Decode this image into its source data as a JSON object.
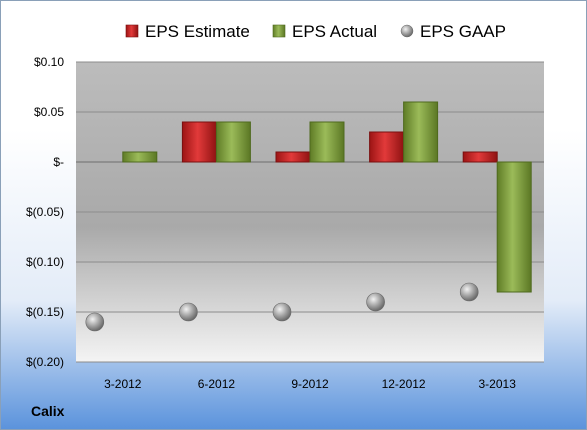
{
  "company": "Calix",
  "chart_data": {
    "type": "bar",
    "categories": [
      "3-2012",
      "6-2012",
      "9-2012",
      "12-2012",
      "3-2013"
    ],
    "series": [
      {
        "name": "EPS Estimate",
        "values": [
          null,
          0.04,
          0.01,
          0.03,
          0.01
        ],
        "color": "#d12a2a",
        "marker": "bar"
      },
      {
        "name": "EPS Actual",
        "values": [
          0.01,
          0.04,
          0.04,
          0.06,
          -0.13
        ],
        "color": "#8fae4a",
        "marker": "bar"
      },
      {
        "name": "EPS GAAP",
        "values": [
          -0.16,
          -0.15,
          -0.15,
          -0.14,
          -0.13
        ],
        "color": "#a6a6a6",
        "marker": "sphere"
      }
    ],
    "ylim": [
      -0.2,
      0.1
    ],
    "yticks": [
      {
        "value": 0.1,
        "label": "$0.10"
      },
      {
        "value": 0.05,
        "label": "$0.05"
      },
      {
        "value": 0,
        "label": "$-"
      },
      {
        "value": -0.05,
        "label": "$(0.05)"
      },
      {
        "value": -0.1,
        "label": "$(0.10)"
      },
      {
        "value": -0.15,
        "label": "$(0.15)"
      },
      {
        "value": -0.2,
        "label": "$(0.20)"
      }
    ],
    "grid": true,
    "legend": "top"
  }
}
